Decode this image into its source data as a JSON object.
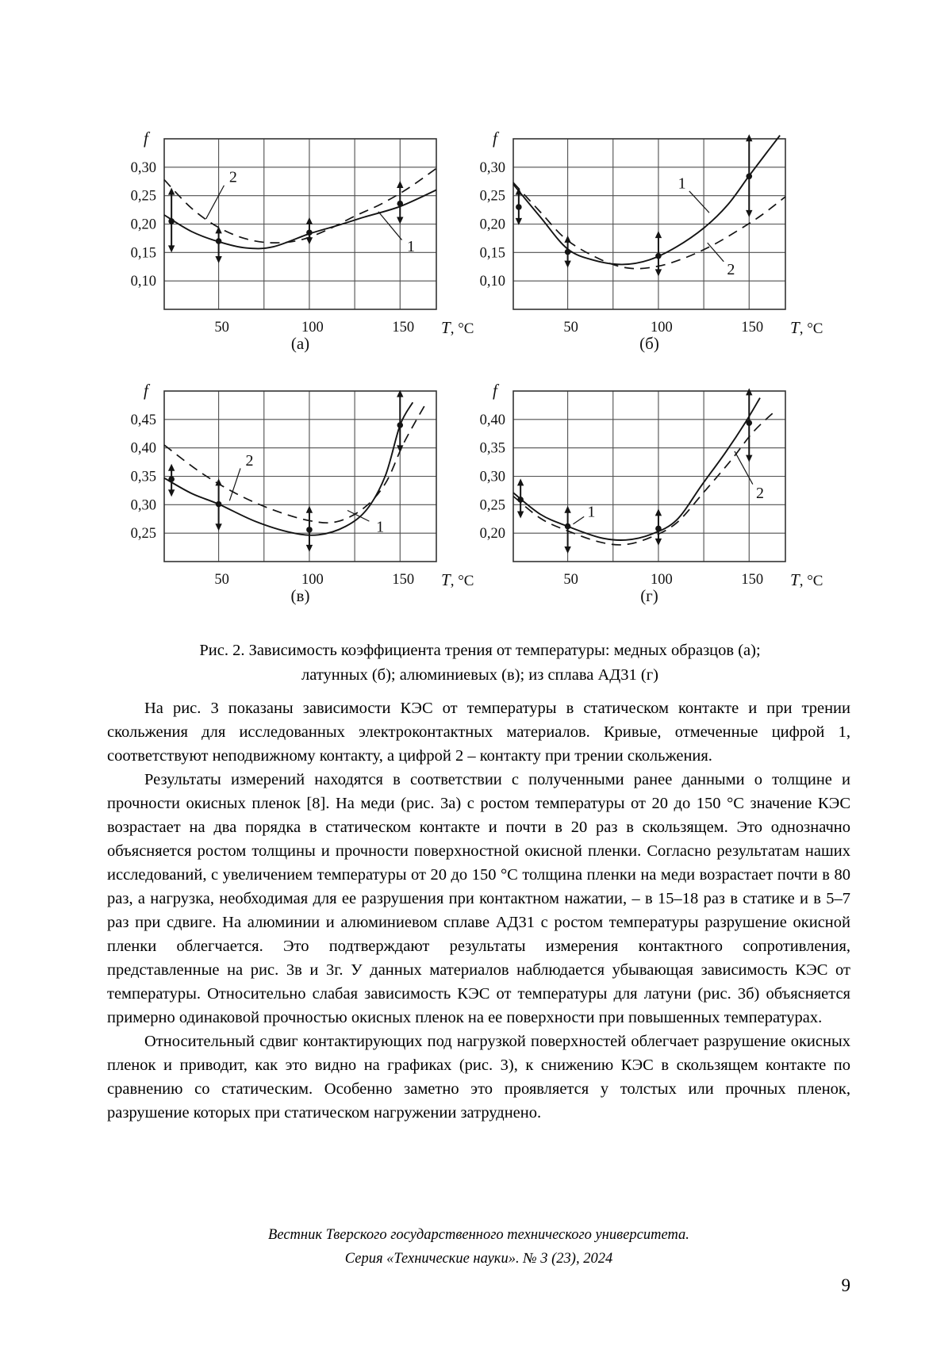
{
  "page": {
    "number": "9",
    "footer_line1": "Вестник Тверского государственного технического университета.",
    "footer_line2": "Серия «Технические науки». № 3 (23), 2024"
  },
  "figure": {
    "caption_line1": "Рис. 2. Зависимость коэффициента трения от температуры: медных образцов (а);",
    "caption_line2": "латунных (б); алюминиевых (в); из сплава АД31 (г)"
  },
  "paragraphs": [
    {
      "text": "На рис. 3 показаны зависимости КЭС от температуры в статическом контакте и при трении скольжения для исследованных электроконтактных материалов. Кривые, отмеченные цифрой 1, соответствуют неподвижному контакту, а цифрой 2 – контакту при трении скольжения."
    },
    {
      "text": "Результаты измерений находятся в соответствии с полученными ранее данными о толщине и прочности окисных пленок [8]. На меди (рис. 3а) с ростом температуры от 20 до 150 °С значение КЭС возрастает на два порядка в статическом контакте и почти в 20 раз в скользящем. Это однозначно объясняется ростом толщины и прочности поверхностной окисной пленки. Согласно результатам наших исследований, с увеличением температуры от 20 до 150 °С толщина пленки на меди возрастает почти в 80 раз, а нагрузка, необходимая для ее разрушения при контактном нажатии, – в 15–18 раз в статике и в 5–7 раз при сдвиге. На алюминии и алюминиевом сплаве АД31 с ростом температуры разрушение окисной пленки облегчается. Это подтверждают результаты измерения контактного сопротивления, представленные на рис. 3в и 3г. У данных материалов наблюдается убывающая зависимость КЭС от температуры. Относительно слабая зависимость КЭС от температуры для латуни (рис. 3б) объясняется примерно одинаковой прочностью окисных пленок на ее поверхности при повышенных температурах."
    },
    {
      "text": "Относительный сдвиг контактирующих под нагрузкой поверхностей облегчает разрушение окисных пленок и приводит, как это видно на графиках (рис. 3), к снижению КЭС в скользящем контакте по сравнению со статическим. Особенно заметно это проявляется у толстых или прочных пленок, разрушение которых при статическом нагружении затруднено."
    }
  ],
  "chart_data": [
    {
      "type": "line",
      "panel": "(а)",
      "material": "медных образцов",
      "ylabel": "f",
      "xlabel": "T, °C",
      "x_range": [
        20,
        170
      ],
      "y_range": [
        0.05,
        0.35
      ],
      "x_gridlines": [
        50,
        75,
        100,
        125,
        150
      ],
      "x_ticks": [
        {
          "v": 50,
          "label": "50"
        },
        {
          "v": 100,
          "label": "100"
        },
        {
          "v": 150,
          "label": "150"
        }
      ],
      "y_ticks": [
        {
          "v": 0.3,
          "label": "0,30"
        },
        {
          "v": 0.25,
          "label": "0,25"
        },
        {
          "v": 0.2,
          "label": "0,20"
        },
        {
          "v": 0.15,
          "label": "0,15"
        },
        {
          "v": 0.1,
          "label": "0,10"
        }
      ],
      "series": [
        {
          "name": "1",
          "meaning": "неподвижный контакт",
          "style": "solid",
          "points": [
            [
              20,
              0.216
            ],
            [
              35,
              0.187
            ],
            [
              50,
              0.169
            ],
            [
              65,
              0.158
            ],
            [
              80,
              0.16
            ],
            [
              100,
              0.183
            ],
            [
              115,
              0.197
            ],
            [
              130,
              0.212
            ],
            [
              150,
              0.231
            ],
            [
              170,
              0.26
            ]
          ]
        },
        {
          "name": "2",
          "meaning": "контакт при трении скольжения",
          "style": "dashed",
          "points": [
            [
              20,
              0.278
            ],
            [
              35,
              0.228
            ],
            [
              50,
              0.194
            ],
            [
              65,
              0.174
            ],
            [
              80,
              0.167
            ],
            [
              95,
              0.172
            ],
            [
              110,
              0.19
            ],
            [
              125,
              0.214
            ],
            [
              140,
              0.236
            ],
            [
              155,
              0.264
            ],
            [
              170,
              0.298
            ]
          ]
        }
      ],
      "measurements": [
        {
          "x": 24,
          "y": 0.205,
          "err_lo": 0.15,
          "err_hi": 0.264
        },
        {
          "x": 50,
          "y": 0.17,
          "err_lo": 0.131,
          "err_hi": 0.196
        },
        {
          "x": 100,
          "y": 0.185,
          "err_lo": 0.164,
          "err_hi": 0.212
        },
        {
          "x": 150,
          "y": 0.236,
          "err_lo": 0.2,
          "err_hi": 0.276
        }
      ],
      "curve_labels": [
        {
          "text": "1",
          "x": 156,
          "y": 0.16,
          "leader": [
            [
              151,
              0.172
            ],
            [
              138,
              0.222
            ]
          ]
        },
        {
          "text": "2",
          "x": 58,
          "y": 0.282,
          "leader": [
            [
              53,
              0.268
            ],
            [
              43,
              0.209
            ]
          ]
        }
      ]
    },
    {
      "type": "line",
      "panel": "(б)",
      "material": "латунных",
      "ylabel": "f",
      "xlabel": "T, °C",
      "x_range": [
        20,
        170
      ],
      "y_range": [
        0.05,
        0.35
      ],
      "x_gridlines": [
        50,
        75,
        100,
        125,
        150
      ],
      "x_ticks": [
        {
          "v": 50,
          "label": "50"
        },
        {
          "v": 100,
          "label": "100"
        },
        {
          "v": 150,
          "label": "150"
        }
      ],
      "y_ticks": [
        {
          "v": 0.3,
          "label": "0,30"
        },
        {
          "v": 0.25,
          "label": "0,25"
        },
        {
          "v": 0.2,
          "label": "0,20"
        },
        {
          "v": 0.15,
          "label": "0,15"
        },
        {
          "v": 0.1,
          "label": "0,10"
        }
      ],
      "series": [
        {
          "name": "1",
          "meaning": "неподвижный контакт",
          "style": "solid",
          "points": [
            [
              20,
              0.27
            ],
            [
              35,
              0.212
            ],
            [
              50,
              0.156
            ],
            [
              65,
              0.136
            ],
            [
              80,
              0.129
            ],
            [
              95,
              0.137
            ],
            [
              110,
              0.16
            ],
            [
              125,
              0.193
            ],
            [
              138,
              0.233
            ],
            [
              150,
              0.285
            ],
            [
              160,
              0.327
            ],
            [
              167,
              0.356
            ]
          ]
        },
        {
          "name": "2",
          "meaning": "контакт при трении скольжения",
          "style": "dashed",
          "points": [
            [
              20,
              0.273
            ],
            [
              35,
              0.221
            ],
            [
              50,
              0.171
            ],
            [
              70,
              0.135
            ],
            [
              85,
              0.122
            ],
            [
              100,
              0.126
            ],
            [
              115,
              0.141
            ],
            [
              130,
              0.163
            ],
            [
              145,
              0.191
            ],
            [
              157,
              0.216
            ],
            [
              170,
              0.248
            ]
          ]
        }
      ],
      "measurements": [
        {
          "x": 23,
          "y": 0.23,
          "err_lo": 0.198,
          "err_hi": 0.264
        },
        {
          "x": 50,
          "y": 0.151,
          "err_lo": 0.123,
          "err_hi": 0.18
        },
        {
          "x": 100,
          "y": 0.144,
          "err_lo": 0.108,
          "err_hi": 0.188
        },
        {
          "x": 150,
          "y": 0.284,
          "err_lo": 0.212,
          "err_hi": 0.358
        }
      ],
      "curve_labels": [
        {
          "text": "1",
          "x": 113,
          "y": 0.271,
          "leader": [
            [
              117,
              0.258
            ],
            [
              128,
              0.22
            ]
          ]
        },
        {
          "text": "2",
          "x": 140,
          "y": 0.12,
          "leader": [
            [
              136,
              0.134
            ],
            [
              127,
              0.167
            ]
          ]
        }
      ]
    },
    {
      "type": "line",
      "panel": "(в)",
      "material": "алюминиевых",
      "ylabel": "f",
      "xlabel": "T, °C",
      "x_range": [
        20,
        170
      ],
      "y_range": [
        0.2,
        0.5
      ],
      "x_gridlines": [
        50,
        75,
        100,
        125,
        150
      ],
      "x_ticks": [
        {
          "v": 50,
          "label": "50"
        },
        {
          "v": 100,
          "label": "100"
        },
        {
          "v": 150,
          "label": "150"
        }
      ],
      "y_ticks": [
        {
          "v": 0.45,
          "label": "0,45"
        },
        {
          "v": 0.4,
          "label": "0,40"
        },
        {
          "v": 0.35,
          "label": "0,35"
        },
        {
          "v": 0.3,
          "label": "0,30"
        },
        {
          "v": 0.25,
          "label": "0,25"
        }
      ],
      "series": [
        {
          "name": "1",
          "meaning": "неподвижный контакт",
          "style": "solid",
          "points": [
            [
              20,
              0.347
            ],
            [
              35,
              0.32
            ],
            [
              50,
              0.301
            ],
            [
              70,
              0.271
            ],
            [
              90,
              0.251
            ],
            [
              105,
              0.247
            ],
            [
              120,
              0.262
            ],
            [
              132,
              0.293
            ],
            [
              142,
              0.352
            ],
            [
              150,
              0.44
            ],
            [
              157,
              0.48
            ]
          ]
        },
        {
          "name": "2",
          "meaning": "контакт при трении скольжения",
          "style": "dashed",
          "points": [
            [
              20,
              0.405
            ],
            [
              40,
              0.357
            ],
            [
              60,
              0.319
            ],
            [
              80,
              0.291
            ],
            [
              100,
              0.272
            ],
            [
              115,
              0.27
            ],
            [
              130,
              0.294
            ],
            [
              142,
              0.338
            ],
            [
              152,
              0.408
            ],
            [
              164,
              0.477
            ]
          ]
        }
      ],
      "measurements": [
        {
          "x": 24,
          "y": 0.345,
          "err_lo": 0.314,
          "err_hi": 0.372
        },
        {
          "x": 50,
          "y": 0.301,
          "err_lo": 0.254,
          "err_hi": 0.346
        },
        {
          "x": 100,
          "y": 0.256,
          "err_lo": 0.217,
          "err_hi": 0.298
        },
        {
          "x": 150,
          "y": 0.44,
          "err_lo": 0.392,
          "err_hi": 0.502
        }
      ],
      "curve_labels": [
        {
          "text": "2",
          "x": 67,
          "y": 0.377,
          "leader": [
            [
              62,
              0.364
            ],
            [
              56,
              0.307
            ]
          ]
        },
        {
          "text": "1",
          "x": 139,
          "y": 0.261,
          "leader": [
            [
              133,
              0.271
            ],
            [
              121,
              0.29
            ]
          ]
        }
      ]
    },
    {
      "type": "line",
      "panel": "(г)",
      "material": "из сплава АД31",
      "ylabel": "f",
      "xlabel": "T, °C",
      "x_range": [
        20,
        170
      ],
      "y_range": [
        0.15,
        0.45
      ],
      "x_gridlines": [
        50,
        75,
        100,
        125,
        150
      ],
      "x_ticks": [
        {
          "v": 50,
          "label": "50"
        },
        {
          "v": 100,
          "label": "100"
        },
        {
          "v": 150,
          "label": "150"
        }
      ],
      "y_ticks": [
        {
          "v": 0.4,
          "label": "0,40"
        },
        {
          "v": 0.35,
          "label": "0,35"
        },
        {
          "v": 0.3,
          "label": "0,30"
        },
        {
          "v": 0.25,
          "label": "0,25"
        },
        {
          "v": 0.2,
          "label": "0,20"
        }
      ],
      "series": [
        {
          "name": "1",
          "meaning": "неподвижный контакт",
          "style": "solid",
          "points": [
            [
              20,
              0.271
            ],
            [
              35,
              0.233
            ],
            [
              50,
              0.212
            ],
            [
              68,
              0.192
            ],
            [
              82,
              0.188
            ],
            [
              96,
              0.198
            ],
            [
              110,
              0.223
            ],
            [
              124,
              0.285
            ],
            [
              137,
              0.342
            ],
            [
              148,
              0.395
            ],
            [
              156,
              0.438
            ]
          ]
        },
        {
          "name": "2",
          "meaning": "контакт при трении скольжения",
          "style": "dashed",
          "points": [
            [
              20,
              0.265
            ],
            [
              35,
              0.226
            ],
            [
              50,
              0.204
            ],
            [
              68,
              0.184
            ],
            [
              82,
              0.18
            ],
            [
              96,
              0.193
            ],
            [
              110,
              0.218
            ],
            [
              125,
              0.272
            ],
            [
              140,
              0.328
            ],
            [
              152,
              0.377
            ],
            [
              164,
              0.414
            ]
          ]
        }
      ],
      "measurements": [
        {
          "x": 24,
          "y": 0.259,
          "err_lo": 0.226,
          "err_hi": 0.296
        },
        {
          "x": 50,
          "y": 0.212,
          "err_lo": 0.164,
          "err_hi": 0.248
        },
        {
          "x": 100,
          "y": 0.208,
          "err_lo": 0.178,
          "err_hi": 0.243
        },
        {
          "x": 150,
          "y": 0.394,
          "err_lo": 0.325,
          "err_hi": 0.455
        }
      ],
      "curve_labels": [
        {
          "text": "1",
          "x": 63,
          "y": 0.237,
          "leader": [
            [
              59,
              0.229
            ],
            [
              53,
              0.216
            ]
          ]
        },
        {
          "text": "2",
          "x": 156,
          "y": 0.27,
          "leader": [
            [
              152,
              0.286
            ],
            [
              142,
              0.344
            ]
          ]
        }
      ]
    }
  ]
}
